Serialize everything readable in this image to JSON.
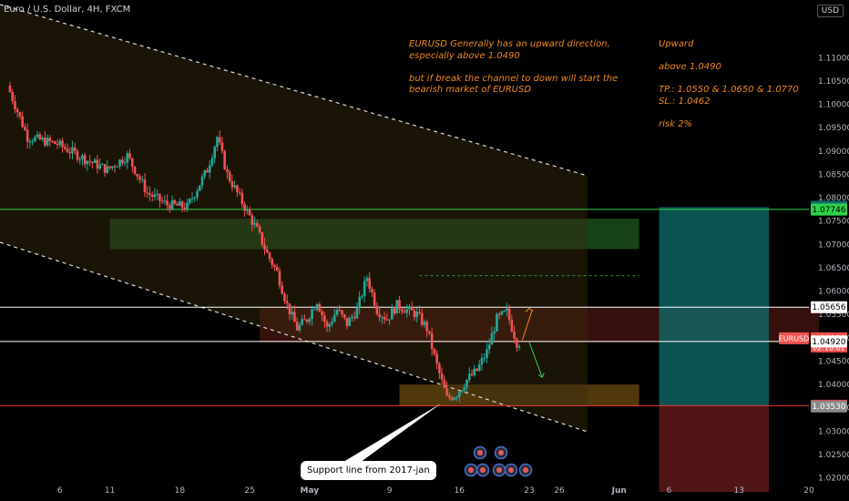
{
  "header": {
    "title": "Euro / U.S. Dollar, 4H, FXCM",
    "currency": "USD"
  },
  "notes": {
    "left": [
      "EURUSD Generally has an upward direction,",
      "especially above 1.0490",
      "",
      "but if break the channel to down will start the",
      "bearish market of EURUSD"
    ],
    "right": [
      "Upward",
      "",
      "above 1.0490",
      "",
      "TP.:  1.0550 & 1.0650  & 1.0770",
      "SL.: 1.0462",
      "",
      "risk 2%"
    ]
  },
  "callout": "Support line from 2017-jan",
  "colors": {
    "up": "#26a69a",
    "down": "#ef5350",
    "green_line": "#2fd24a",
    "red_line": "#e53935",
    "white_line": "#ffffff",
    "tp_zone": "#0f6f6f",
    "sl_zone": "#6e1c1c",
    "orange_zone": "#6b4a10",
    "green_zone": "#1f5a1f",
    "red_zone": "#5a1a14",
    "channel": "#3a2c10"
  },
  "chart_data": {
    "type": "candlestick",
    "symbol": "EURUSD",
    "timeframe": "4H",
    "ylim": [
      1.017,
      1.12
    ],
    "y_ticks": [
      "1.11000",
      "1.10500",
      "1.10000",
      "1.09500",
      "1.09000",
      "1.08500",
      "1.08000",
      "1.07500",
      "1.07000",
      "1.06500",
      "1.06000",
      "1.05500",
      "1.05000",
      "1.04500",
      "1.04000",
      "1.03500",
      "1.03000",
      "1.02500",
      "1.02000"
    ],
    "x_ticks": [
      {
        "label": "6",
        "day": 6
      },
      {
        "label": "11",
        "day": 11
      },
      {
        "label": "18",
        "day": 18
      },
      {
        "label": "25",
        "day": 25
      },
      {
        "label": "May",
        "day": 31
      },
      {
        "label": "9",
        "day": 39
      },
      {
        "label": "16",
        "day": 46
      },
      {
        "label": "23",
        "day": 53
      },
      {
        "label": "26",
        "day": 56
      },
      {
        "label": "Jun",
        "day": 62
      },
      {
        "label": "6",
        "day": 67
      },
      {
        "label": "13",
        "day": 74
      },
      {
        "label": "20",
        "day": 81
      }
    ],
    "price_path": [
      [
        1,
        1.104
      ],
      [
        3,
        1.093
      ],
      [
        6,
        1.0915
      ],
      [
        9,
        1.088
      ],
      [
        11,
        1.086
      ],
      [
        13,
        1.089
      ],
      [
        15,
        1.081
      ],
      [
        17,
        1.0785
      ],
      [
        19,
        1.078
      ],
      [
        21,
        1.086
      ],
      [
        22,
        1.093
      ],
      [
        23,
        1.085
      ],
      [
        24,
        1.081
      ],
      [
        26,
        1.073
      ],
      [
        27,
        1.068
      ],
      [
        28,
        1.064
      ],
      [
        29,
        1.057
      ],
      [
        30,
        1.052
      ],
      [
        31,
        1.054
      ],
      [
        32,
        1.058
      ],
      [
        33,
        1.052
      ],
      [
        34,
        1.056
      ],
      [
        35,
        1.053
      ],
      [
        36,
        1.056
      ],
      [
        37,
        1.063
      ],
      [
        38,
        1.056
      ],
      [
        39,
        1.054
      ],
      [
        40,
        1.057
      ],
      [
        41,
        1.056
      ],
      [
        42,
        1.055
      ],
      [
        43,
        1.052
      ],
      [
        44,
        1.044
      ],
      [
        45,
        1.037
      ],
      [
        46,
        1.038
      ],
      [
        47,
        1.041
      ],
      [
        48,
        1.043
      ],
      [
        49,
        1.047
      ],
      [
        50,
        1.054
      ],
      [
        51,
        1.0555
      ],
      [
        52,
        1.049
      ]
    ],
    "levels": [
      {
        "name": "green",
        "price": 1.0775
      },
      {
        "name": "white-upper",
        "price": 1.05656
      },
      {
        "name": "white-lower",
        "price": 1.0492
      },
      {
        "name": "red",
        "price": 1.03545
      },
      {
        "name": "dashed-green",
        "price": 1.0633
      }
    ],
    "price_labels": [
      {
        "text": "1.07807",
        "price": 1.07807,
        "bg": "#0f6f6f",
        "fg": "#ffffff"
      },
      {
        "text": "1.07746",
        "price": 1.07746,
        "bg": "#2fd24a",
        "fg": "#000000"
      },
      {
        "text": "1.05656",
        "price": 1.05656,
        "bg": "#ffffff",
        "fg": "#000000"
      },
      {
        "text": "1.04990",
        "price": 1.0499,
        "bg": "#ef5350",
        "fg": "#ffffff",
        "sub": "02:10:02"
      },
      {
        "text": "1.04920",
        "price": 1.0492,
        "bg": "#ffffff",
        "fg": "#000000"
      },
      {
        "text": "1.03545",
        "price": 1.03545,
        "bg": "#e53935",
        "fg": "#ffffff"
      },
      {
        "text": "1.03530",
        "price": 1.0353,
        "bg": "#8a8a8a",
        "fg": "#ffffff"
      }
    ],
    "symbol_tag": "EURUSD",
    "zones": [
      {
        "name": "green-zone",
        "x0": 11,
        "x1": 64,
        "y0": 1.069,
        "y1": 1.0755
      },
      {
        "name": "red-zone",
        "x0": 26,
        "x1": 82,
        "y0": 1.049,
        "y1": 1.0566
      },
      {
        "name": "orange-zone",
        "x0": 40,
        "x1": 64,
        "y0": 1.0355,
        "y1": 1.04
      },
      {
        "name": "tp-zone",
        "x0": 66,
        "x1": 77,
        "y0": 1.0355,
        "y1": 1.078
      },
      {
        "name": "sl-zone",
        "x0": 66,
        "x1": 77,
        "y0": 1.017,
        "y1": 1.0355
      }
    ]
  }
}
